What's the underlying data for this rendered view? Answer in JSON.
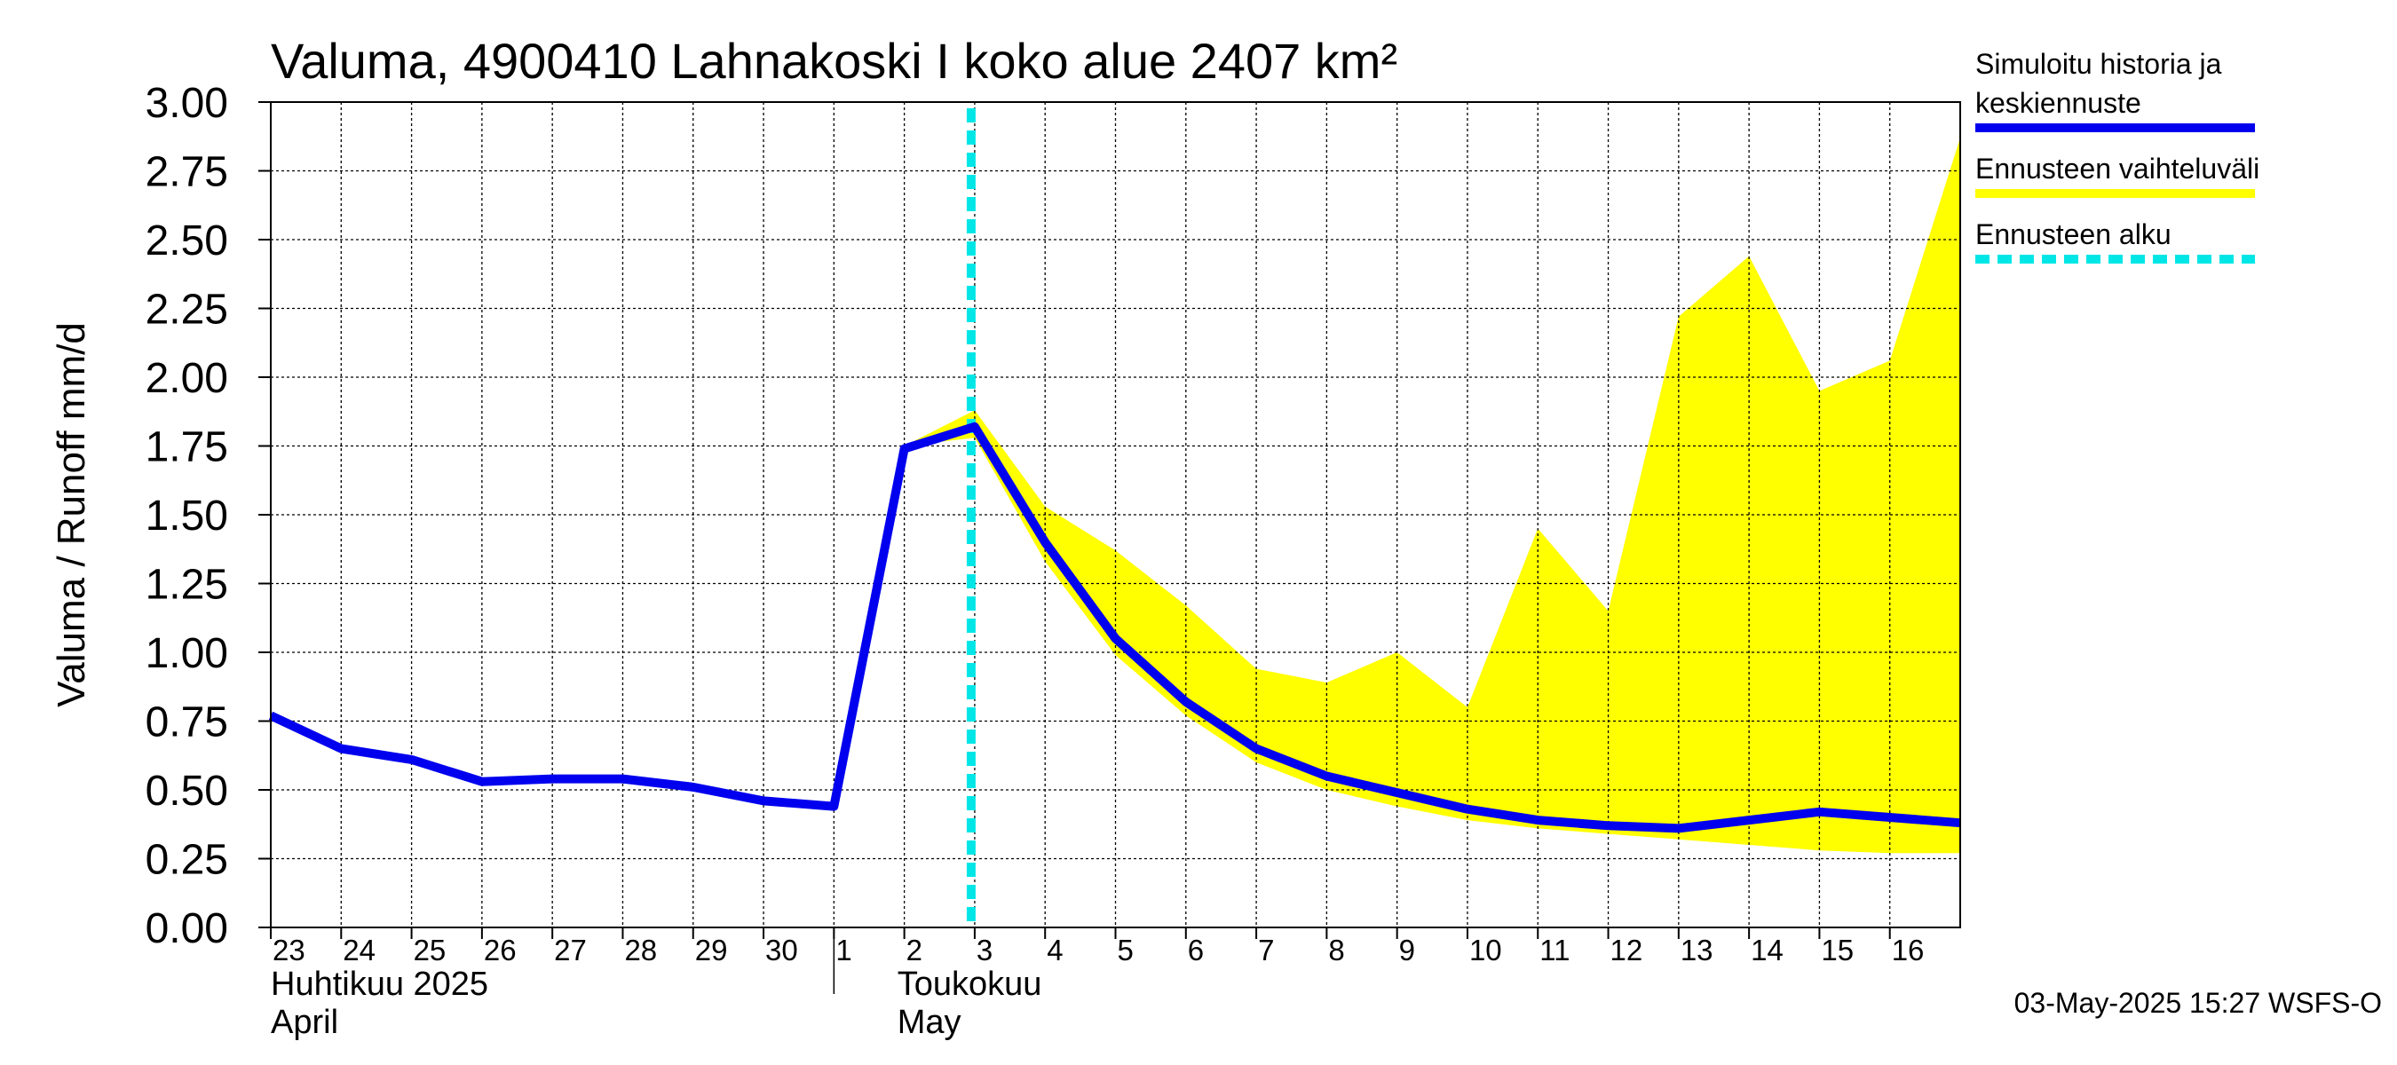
{
  "chart_data": {
    "type": "line",
    "title": "Valuma, 4900410 Lahnakoski I koko alue 2407 km²",
    "ylabel": "Valuma / Runoff     mm/d",
    "ylim": [
      0,
      3.0
    ],
    "yticks": [
      "0.00",
      "0.25",
      "0.50",
      "0.75",
      "1.00",
      "1.25",
      "1.50",
      "1.75",
      "2.00",
      "2.25",
      "2.50",
      "2.75",
      "3.00"
    ],
    "xlim": [
      "2025-04-23",
      "2025-05-17"
    ],
    "x_tick_labels": [
      {
        "date": "2025-04-23",
        "label": "23"
      },
      {
        "date": "2025-04-24",
        "label": "24"
      },
      {
        "date": "2025-04-25",
        "label": "25"
      },
      {
        "date": "2025-04-26",
        "label": "26"
      },
      {
        "date": "2025-04-27",
        "label": "27"
      },
      {
        "date": "2025-04-28",
        "label": "28"
      },
      {
        "date": "2025-04-29",
        "label": "29"
      },
      {
        "date": "2025-04-30",
        "label": "30"
      },
      {
        "date": "2025-05-01",
        "label": "1"
      },
      {
        "date": "2025-05-02",
        "label": "2"
      },
      {
        "date": "2025-05-03",
        "label": "3"
      },
      {
        "date": "2025-05-04",
        "label": "4"
      },
      {
        "date": "2025-05-05",
        "label": "5"
      },
      {
        "date": "2025-05-06",
        "label": "6"
      },
      {
        "date": "2025-05-07",
        "label": "7"
      },
      {
        "date": "2025-05-08",
        "label": "8"
      },
      {
        "date": "2025-05-09",
        "label": "9"
      },
      {
        "date": "2025-05-10",
        "label": "10"
      },
      {
        "date": "2025-05-11",
        "label": "11"
      },
      {
        "date": "2025-05-12",
        "label": "12"
      },
      {
        "date": "2025-05-13",
        "label": "13"
      },
      {
        "date": "2025-05-14",
        "label": "14"
      },
      {
        "date": "2025-05-15",
        "label": "15"
      },
      {
        "date": "2025-05-16",
        "label": "16"
      }
    ],
    "month_labels": [
      {
        "date": "2025-04-23",
        "line1": "Huhtikuu  2025",
        "line2": "April"
      },
      {
        "date": "2025-05-02",
        "line1": "Toukokuu",
        "line2": "May"
      }
    ],
    "grid": true,
    "legend_position": "right",
    "series": [
      {
        "name": "Simuloitu historia ja keskiennuste",
        "color": "#0000ee",
        "x": [
          "2025-04-23",
          "2025-04-24",
          "2025-04-25",
          "2025-04-26",
          "2025-04-27",
          "2025-04-28",
          "2025-04-29",
          "2025-04-30",
          "2025-05-01",
          "2025-05-02",
          "2025-05-03",
          "2025-05-04",
          "2025-05-05",
          "2025-05-06",
          "2025-05-07",
          "2025-05-08",
          "2025-05-09",
          "2025-05-10",
          "2025-05-11",
          "2025-05-12",
          "2025-05-13",
          "2025-05-14",
          "2025-05-15",
          "2025-05-16",
          "2025-05-17"
        ],
        "values": [
          0.77,
          0.65,
          0.61,
          0.53,
          0.54,
          0.54,
          0.51,
          0.46,
          0.44,
          1.74,
          1.82,
          1.4,
          1.05,
          0.82,
          0.65,
          0.55,
          0.49,
          0.43,
          0.39,
          0.37,
          0.36,
          0.39,
          0.42,
          0.4,
          0.38
        ]
      }
    ],
    "band": {
      "name": "Ennusteen vaihteluväli",
      "color": "#ffff00",
      "x": [
        "2025-05-02",
        "2025-05-03",
        "2025-05-04",
        "2025-05-05",
        "2025-05-06",
        "2025-05-07",
        "2025-05-08",
        "2025-05-09",
        "2025-05-10",
        "2025-05-11",
        "2025-05-12",
        "2025-05-13",
        "2025-05-14",
        "2025-05-15",
        "2025-05-16",
        "2025-05-17"
      ],
      "upper": [
        1.75,
        1.88,
        1.53,
        1.37,
        1.17,
        0.94,
        0.89,
        1.0,
        0.8,
        1.45,
        1.15,
        2.22,
        2.44,
        1.95,
        2.06,
        2.87
      ],
      "lower": [
        1.75,
        1.78,
        1.33,
        0.99,
        0.77,
        0.6,
        0.5,
        0.44,
        0.39,
        0.36,
        0.34,
        0.32,
        0.3,
        0.28,
        0.27,
        0.27
      ]
    },
    "forecast_start": {
      "name": "Ennusteen alku",
      "x": "2025-05-03",
      "color": "#00e6e6"
    }
  },
  "legend": {
    "items": [
      {
        "label_lines": [
          "Simuloitu historia ja",
          "keskiennuste"
        ],
        "color": "#0000ee",
        "style": "solid"
      },
      {
        "label_lines": [
          "Ennusteen vaihteluväli"
        ],
        "color": "#ffff00",
        "style": "solid"
      },
      {
        "label_lines": [
          "Ennusteen alku"
        ],
        "color": "#00e6e6",
        "style": "dashed"
      }
    ]
  },
  "footer": {
    "timestamp": "03-May-2025 15:27 WSFS-O"
  }
}
